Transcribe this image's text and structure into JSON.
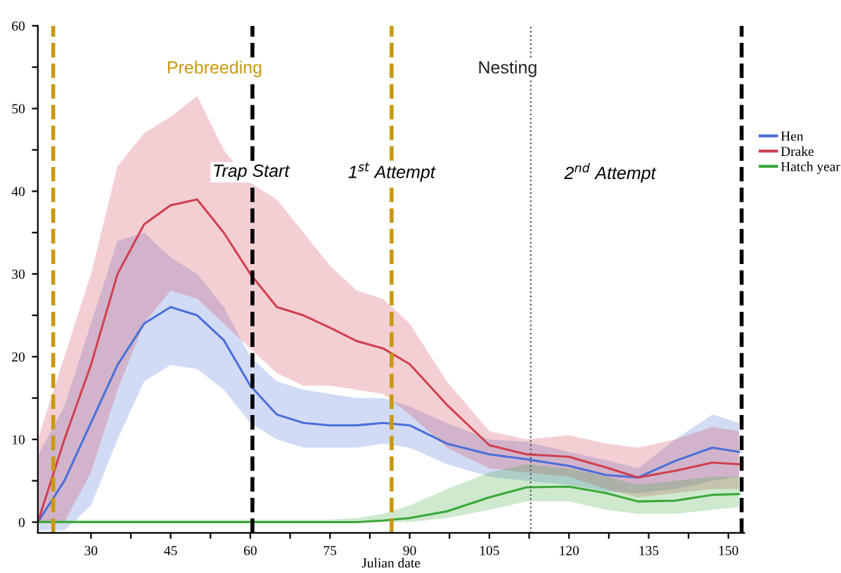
{
  "chart_data": {
    "type": "line",
    "xlabel": "Julian date",
    "x": [
      20,
      25,
      30,
      35,
      40,
      45,
      50,
      55,
      60,
      65,
      70,
      75,
      80,
      85,
      90,
      97,
      105,
      112,
      120,
      127,
      133,
      140,
      147,
      152
    ],
    "series": [
      {
        "name": "Hen",
        "color": "#4a6fd8",
        "values": [
          0,
          5,
          12,
          19,
          24,
          26,
          25,
          22,
          16.5,
          13,
          12,
          11.7,
          11.7,
          12,
          11.7,
          9.5,
          8.2,
          7.6,
          6.8,
          5.7,
          5.4,
          7.4,
          9,
          8.5
        ],
        "lower": [
          -1,
          -1,
          2,
          10,
          17,
          19,
          18.5,
          16,
          12,
          10,
          9,
          9,
          9,
          9.5,
          9,
          7,
          5.5,
          5,
          4.5,
          3.7,
          3.5,
          4,
          5,
          5.5
        ],
        "upper": [
          8,
          14,
          24,
          34,
          35,
          32,
          30,
          26,
          20,
          17,
          16,
          15.5,
          15,
          15,
          14,
          12,
          10,
          9.7,
          8.5,
          7.5,
          6.5,
          10,
          13,
          12
        ]
      },
      {
        "name": "Drake",
        "color": "#d0404f",
        "values": [
          0,
          10,
          19,
          30,
          36,
          38.3,
          39,
          35,
          30,
          26,
          25,
          23.5,
          21.9,
          21,
          19.1,
          14.2,
          9.3,
          8.2,
          7.9,
          6.6,
          5.4,
          6.2,
          7.2,
          7
        ],
        "lower": [
          0,
          0,
          6,
          16,
          24,
          28,
          27,
          24,
          21,
          18,
          16.5,
          16.5,
          16,
          15.5,
          13,
          9,
          6.5,
          6,
          5.5,
          4,
          3,
          3.5,
          4,
          4
        ],
        "upper": [
          10,
          20,
          30,
          43,
          47,
          49,
          51.5,
          45,
          41,
          39,
          35,
          31,
          28,
          27,
          24,
          17,
          11,
          10,
          10.5,
          9.5,
          9,
          10,
          11.5,
          11
        ]
      },
      {
        "name": "Hatch year",
        "color": "#3aa83a",
        "values": [
          0,
          0,
          0,
          0,
          0,
          0,
          0,
          0,
          0,
          0,
          0,
          0,
          0,
          0.2,
          0.5,
          1.3,
          3,
          4.2,
          4.3,
          3.5,
          2.5,
          2.6,
          3.3,
          3.4
        ],
        "lower": [
          0,
          0,
          0,
          0,
          0,
          0,
          0,
          0,
          0,
          0,
          0,
          0,
          0,
          0,
          0,
          0.5,
          1.5,
          2.5,
          2.5,
          1.5,
          1,
          1,
          1.5,
          1.8
        ],
        "upper": [
          0.3,
          0.3,
          0.3,
          0.3,
          0.3,
          0.3,
          0.3,
          0.3,
          0.3,
          0.3,
          0.3,
          0.3,
          0.5,
          1,
          2,
          4,
          6,
          7,
          6.5,
          5.5,
          4.5,
          5,
          5.5,
          5.5
        ]
      }
    ],
    "xlim": [
      20,
      153
    ],
    "xticks": [
      30,
      {
        "value": 37.5,
        "label": null
      },
      45,
      {
        "value": 52.5,
        "label": null
      },
      60,
      {
        "value": 67.5,
        "label": null
      },
      75,
      {
        "value": 82.5,
        "label": null
      },
      90,
      {
        "value": 97.5,
        "label": null
      },
      105,
      {
        "value": 112.5,
        "label": null
      },
      120,
      {
        "value": 127.5,
        "label": null
      },
      135,
      {
        "value": 142.5,
        "label": null
      },
      150
    ],
    "ylim": [
      -1.3,
      60
    ],
    "yticks": [
      0,
      {
        "value": 5,
        "label": null
      },
      10,
      {
        "value": 15,
        "label": null
      },
      20,
      {
        "value": 25,
        "label": null
      },
      30,
      {
        "value": 35,
        "label": null
      },
      40,
      {
        "value": 45,
        "label": null
      },
      50,
      {
        "value": 55,
        "label": null
      },
      60
    ],
    "ref_lines": [
      {
        "axis": "x",
        "value": 22.9,
        "color": "#c9980f",
        "line_style": "dashed"
      },
      {
        "axis": "x",
        "value": 60.4,
        "color": "#000000",
        "line_style": "dashed"
      },
      {
        "axis": "x",
        "value": 86.6,
        "color": "#c9980f",
        "line_style": "dashed"
      },
      {
        "axis": "x",
        "value": 112.8,
        "color": "#555555",
        "line_style": "dotted"
      },
      {
        "axis": "x",
        "value": 152.5,
        "color": "#000000",
        "line_style": "dashed"
      }
    ],
    "annotations": [
      "Prebreeding",
      "Nesting",
      {
        "text": "Trap Start",
        "x": 60.1,
        "y": 42.3
      },
      {
        "text": "1$^{st}$ Attempt",
        "x": 86.6,
        "y": 42.3
      },
      "2$^{nd}$ Attempt"
    ],
    "legend": "right",
    "grid": false,
    "marker": "none",
    "line_style": "solid"
  }
}
